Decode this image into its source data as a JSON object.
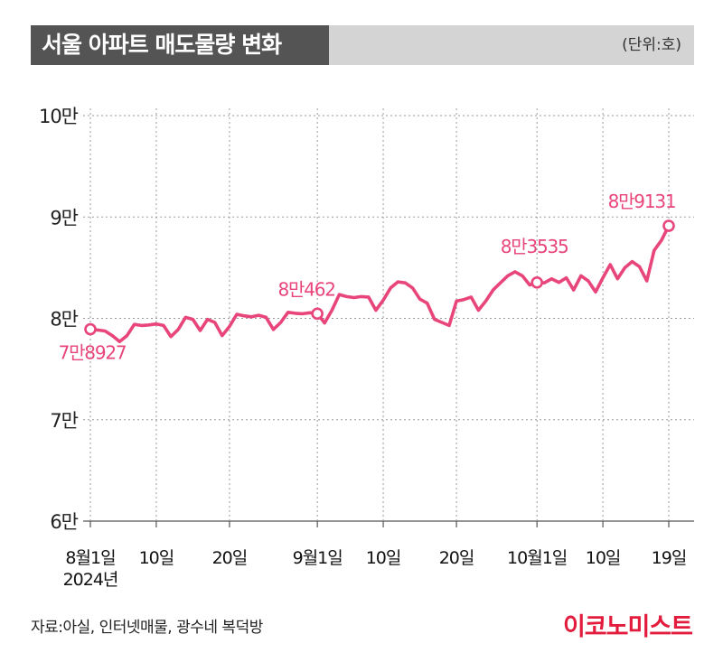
{
  "header": {
    "title": "서울 아파트 매도물량 변화",
    "unit": "(단위:호)"
  },
  "chart_data": {
    "type": "line",
    "title": "서울 아파트 매도물량 변화",
    "unit": "(단위:호)",
    "ylim": [
      60000,
      100000
    ],
    "y_ticks": [
      {
        "value": 100000,
        "label": "10만"
      },
      {
        "value": 90000,
        "label": "9만"
      },
      {
        "value": 80000,
        "label": "8만"
      },
      {
        "value": 70000,
        "label": "7만"
      },
      {
        "value": 60000,
        "label": "6만"
      }
    ],
    "x_ticks": [
      {
        "date": "2024-08-01",
        "label": "8월1일",
        "sublabel": "2024년"
      },
      {
        "date": "2024-08-10",
        "label": "10일"
      },
      {
        "date": "2024-08-20",
        "label": "20일"
      },
      {
        "date": "2024-09-01",
        "label": "9월1일"
      },
      {
        "date": "2024-09-10",
        "label": "10일"
      },
      {
        "date": "2024-09-20",
        "label": "20일"
      },
      {
        "date": "2024-10-01",
        "label": "10월1일"
      },
      {
        "date": "2024-10-10",
        "label": "10일"
      },
      {
        "date": "2024-10-19",
        "label": "19일"
      }
    ],
    "grid": true,
    "color": "#e8457a",
    "series": [
      {
        "x": [
          "2024-08-01",
          "2024-08-02",
          "2024-08-03",
          "2024-08-04",
          "2024-08-05",
          "2024-08-06",
          "2024-08-07",
          "2024-08-08",
          "2024-08-09",
          "2024-08-10",
          "2024-08-11",
          "2024-08-12",
          "2024-08-13",
          "2024-08-14",
          "2024-08-15",
          "2024-08-16",
          "2024-08-17",
          "2024-08-18",
          "2024-08-19",
          "2024-08-20",
          "2024-08-21",
          "2024-08-22",
          "2024-08-23",
          "2024-08-24",
          "2024-08-25",
          "2024-08-26",
          "2024-08-27",
          "2024-08-28",
          "2024-08-29",
          "2024-08-30",
          "2024-08-31",
          "2024-09-01",
          "2024-09-02",
          "2024-09-03",
          "2024-09-04",
          "2024-09-05",
          "2024-09-06",
          "2024-09-07",
          "2024-09-08",
          "2024-09-09",
          "2024-09-10",
          "2024-09-11",
          "2024-09-12",
          "2024-09-13",
          "2024-09-14",
          "2024-09-15",
          "2024-09-16",
          "2024-09-17",
          "2024-09-18",
          "2024-09-19",
          "2024-09-20",
          "2024-09-21",
          "2024-09-22",
          "2024-09-23",
          "2024-09-24",
          "2024-09-25",
          "2024-09-26",
          "2024-09-27",
          "2024-09-28",
          "2024-09-29",
          "2024-09-30",
          "2024-10-01",
          "2024-10-02",
          "2024-10-03",
          "2024-10-04",
          "2024-10-05",
          "2024-10-06",
          "2024-10-07",
          "2024-10-08",
          "2024-10-09",
          "2024-10-10",
          "2024-10-11",
          "2024-10-12",
          "2024-10-13",
          "2024-10-14",
          "2024-10-15",
          "2024-10-16",
          "2024-10-17",
          "2024-10-18",
          "2024-10-19"
        ],
        "values": [
          78927,
          78850,
          78750,
          78300,
          77700,
          78300,
          79400,
          79300,
          79350,
          79450,
          79300,
          78200,
          78900,
          80100,
          79900,
          78800,
          79900,
          79600,
          78300,
          79200,
          80400,
          80250,
          80150,
          80300,
          80100,
          78900,
          79600,
          80600,
          80500,
          80450,
          80550,
          80462,
          79550,
          80800,
          82350,
          82150,
          82050,
          82150,
          82100,
          80800,
          81800,
          83000,
          83600,
          83500,
          83000,
          81900,
          81500,
          79900,
          79600,
          79300,
          81700,
          81850,
          82100,
          80800,
          81700,
          82800,
          83500,
          84200,
          84600,
          84200,
          83300,
          83535,
          83500,
          83900,
          83550,
          84000,
          82800,
          84200,
          83700,
          82600,
          84000,
          85300,
          83900,
          85000,
          85600,
          85100,
          83700,
          86700,
          87700,
          89131
        ]
      }
    ],
    "annotations": [
      {
        "x": "2024-08-01",
        "y": 78927,
        "label": "7만8927"
      },
      {
        "x": "2024-09-01",
        "y": 80462,
        "label": "8만462"
      },
      {
        "x": "2024-10-01",
        "y": 83535,
        "label": "8만3535"
      },
      {
        "x": "2024-10-19",
        "y": 89131,
        "label": "8만9131"
      }
    ]
  },
  "footer": {
    "source": "자료:아실, 인터넷매물, 광수네 복덕방",
    "logo": "이코노미스트"
  }
}
